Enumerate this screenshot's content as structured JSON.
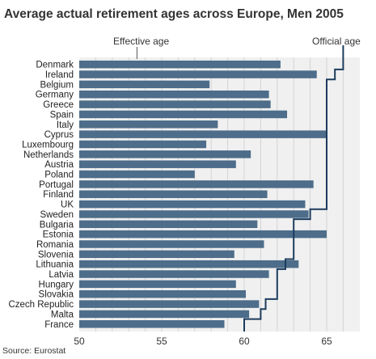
{
  "chart_data": {
    "type": "bar",
    "title": "Average actual retirement ages across Europe, Men 2005",
    "source": "Source: Eurostat",
    "xlim": [
      50,
      67
    ],
    "x_ticks": [
      "50",
      "55",
      "60",
      "65"
    ],
    "x_tick_values": [
      50,
      55,
      60,
      65
    ],
    "grid": true,
    "categories": [
      "Denmark",
      "Ireland",
      "Belgium",
      "Germany",
      "Greece",
      "Spain",
      "Italy",
      "Cyprus",
      "Luxembourg",
      "Netherlands",
      "Austria",
      "Poland",
      "Portugal",
      "Finland",
      "UK",
      "Sweden",
      "Bulgaria",
      "Estonia",
      "Romania",
      "Slovenia",
      "Lithuania",
      "Latvia",
      "Hungary",
      "Slovakia",
      "Czech Republic",
      "Malta",
      "France"
    ],
    "series": [
      {
        "name": "Effective age",
        "values": [
          62.2,
          64.4,
          57.9,
          61.5,
          61.6,
          62.6,
          58.4,
          65.0,
          57.7,
          60.4,
          59.5,
          57.0,
          64.2,
          61.4,
          63.7,
          63.9,
          60.8,
          65.0,
          61.2,
          59.4,
          63.3,
          61.5,
          59.5,
          60.1,
          60.9,
          60.3,
          58.8
        ]
      },
      {
        "name": "Official age",
        "values": [
          66.0,
          65.5,
          65.0,
          65.0,
          65.0,
          65.0,
          65.0,
          65.0,
          65.0,
          65.0,
          65.0,
          65.0,
          65.0,
          65.0,
          65.0,
          64.0,
          63.0,
          63.0,
          63.0,
          63.0,
          62.5,
          62.0,
          62.0,
          62.0,
          61.3,
          61.0,
          60.0
        ]
      }
    ]
  },
  "colors": {
    "bar": "#4d6d8a",
    "plot_bg": "#f0f0f0",
    "grid": "#d4d4d4",
    "official_line": "#1c3c5e",
    "text": "#333333"
  }
}
